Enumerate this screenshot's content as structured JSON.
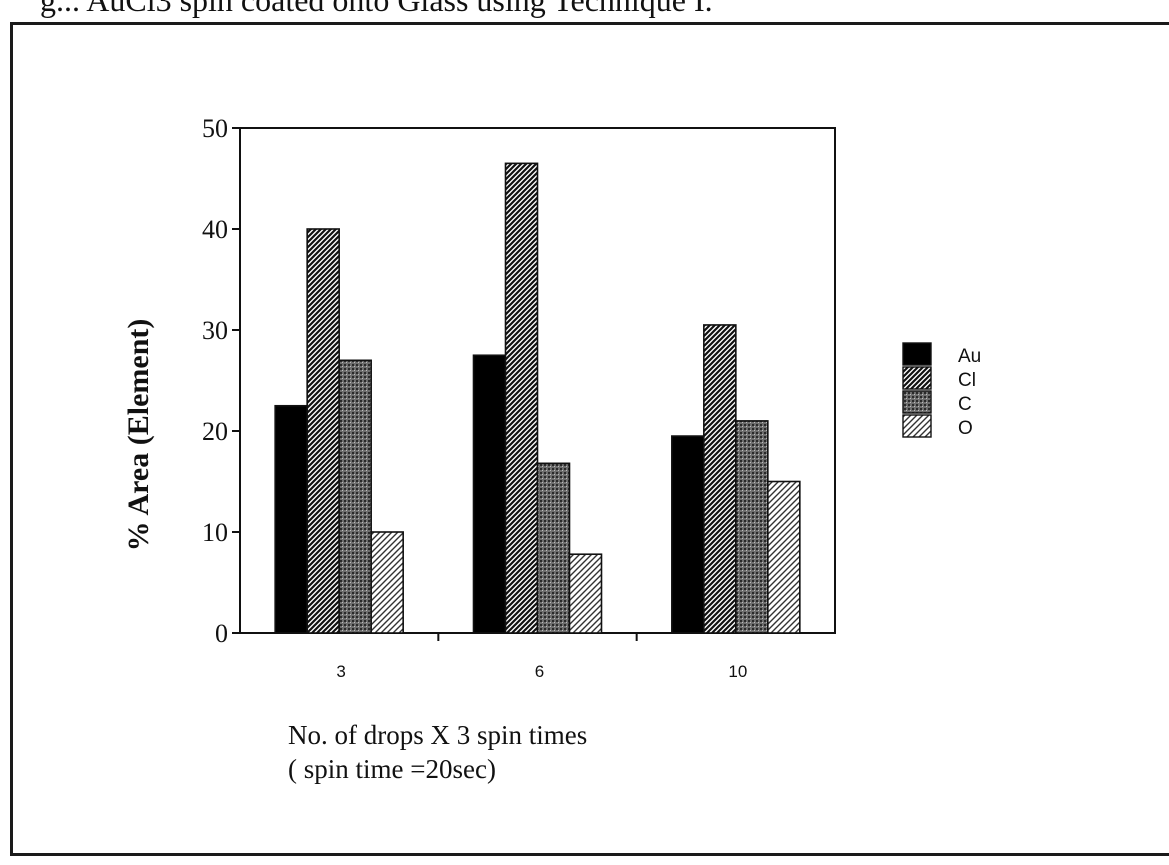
{
  "caption": "g... AuCl3 spin coated onto Glass using Technique I.",
  "chart_data": {
    "type": "bar",
    "categories": [
      "3",
      "6",
      "10"
    ],
    "series": [
      {
        "name": "Au",
        "values": [
          22.5,
          27.5,
          19.5
        ],
        "pattern": "solid"
      },
      {
        "name": "Cl",
        "values": [
          40,
          46.5,
          30.5
        ],
        "pattern": "dense-hatch"
      },
      {
        "name": "C",
        "values": [
          27,
          16.8,
          21
        ],
        "pattern": "dots"
      },
      {
        "name": "O",
        "values": [
          10,
          7.8,
          15
        ],
        "pattern": "light-hatch"
      }
    ],
    "ylim": [
      0,
      50
    ],
    "yticks": [
      0,
      10,
      20,
      30,
      40,
      50
    ],
    "ylabel": "% Area (Element)",
    "xlabel_line1": "No. of drops X 3 spin times",
    "xlabel_line2": "( spin time =20sec)",
    "legend_position": "right",
    "grid": false
  }
}
